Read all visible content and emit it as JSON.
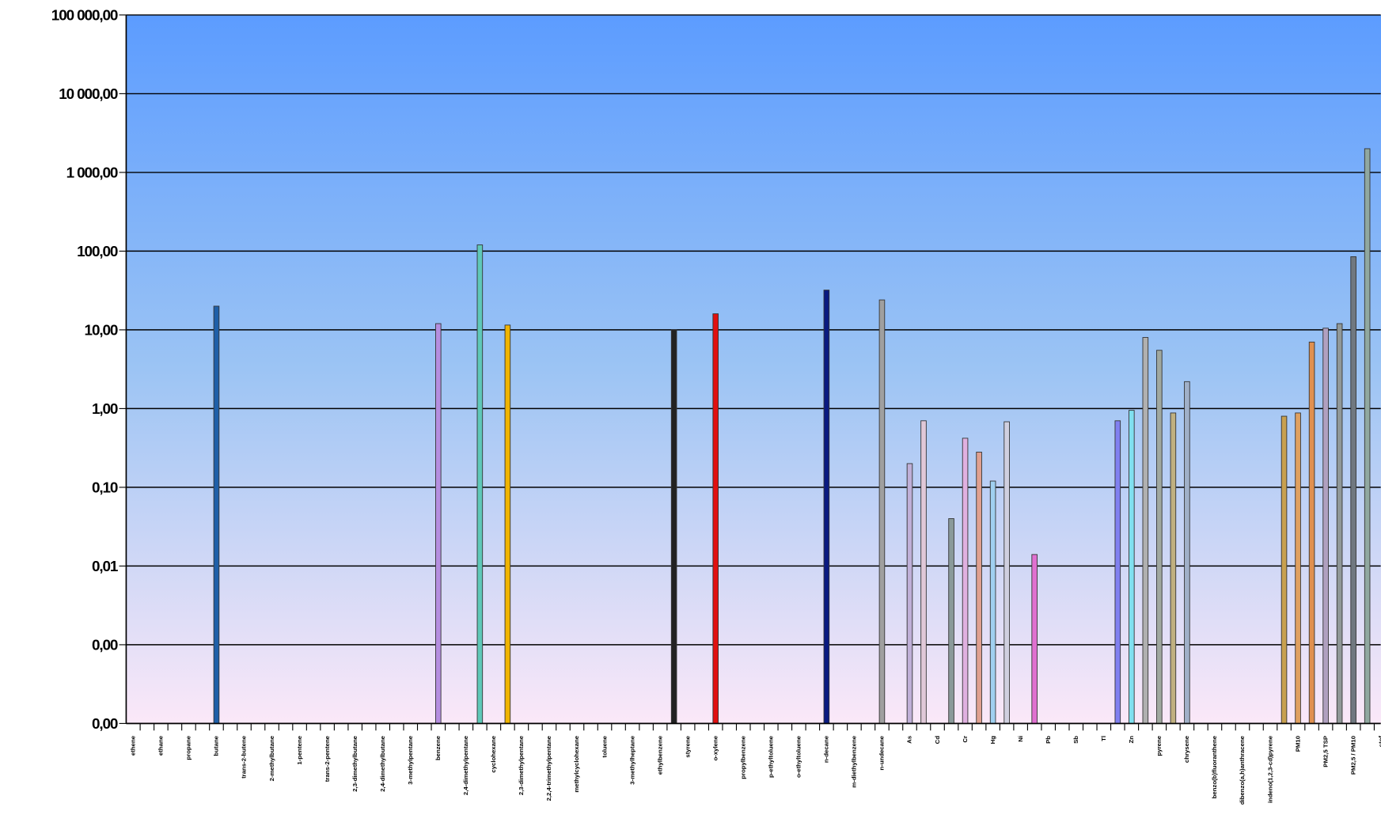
{
  "chart_data": {
    "type": "bar",
    "log_scale": true,
    "grid": true,
    "categories": [
      "ethene",
      null,
      "ethane",
      null,
      "propane",
      null,
      "butane",
      null,
      "trans-2-butene",
      null,
      "2-methylbutane",
      null,
      "1-pentene",
      null,
      "trans-2-pentene",
      null,
      "2,3-dimethylbutane",
      null,
      "2,4-dimethylbutane",
      null,
      "3-methylpentane",
      null,
      "benzene",
      null,
      "2,4-dimethylpentane",
      null,
      "cyclohexane",
      null,
      "2,3-dimethylpentane",
      null,
      "2,2,4-trimethylpentane",
      null,
      "methylcyclohexane",
      null,
      "toluene",
      null,
      "3-methylheptane",
      null,
      "ethylbenzene",
      null,
      "styrene",
      null,
      "o-xylene",
      null,
      "propylbenzene",
      null,
      "p-ethyltoluene",
      null,
      "o-ethyltoluene",
      null,
      "n-decane",
      null,
      "m-diethylbenzene",
      null,
      "n-undecane",
      null,
      "As",
      null,
      "Cd",
      null,
      "Cr",
      null,
      "Hg",
      null,
      "Ni",
      null,
      "Pb",
      null,
      "Sb",
      null,
      "Tl",
      null,
      "Zn",
      null,
      "pyrene",
      null,
      "chrysene",
      null,
      "benzo(b)fluoranthene",
      null,
      "dibenzo(a,h)anthracene",
      null,
      "indeno(1,2,3-cd)pyrene",
      null,
      "PM10",
      null,
      "PM2,5 TSP",
      null,
      "PM2,5 / PM10",
      null,
      "stof"
    ],
    "values": [
      null,
      null,
      null,
      null,
      null,
      null,
      20,
      null,
      null,
      null,
      null,
      null,
      null,
      null,
      null,
      null,
      null,
      null,
      null,
      null,
      null,
      null,
      12,
      null,
      null,
      120,
      null,
      11.5,
      null,
      null,
      null,
      null,
      null,
      null,
      null,
      null,
      null,
      null,
      null,
      10,
      null,
      null,
      16,
      null,
      null,
      null,
      null,
      null,
      null,
      null,
      32,
      null,
      null,
      null,
      24,
      null,
      0.2,
      0.7,
      null,
      0.04,
      0.42,
      0.28,
      0.12,
      0.68,
      null,
      0.014,
      null,
      null,
      null,
      null,
      null,
      0.7,
      0.95,
      8,
      5.5,
      0.88,
      2.2,
      null,
      null,
      null,
      null,
      null,
      null,
      0.8,
      0.88,
      7,
      10.5,
      12,
      85,
      2000,
      null
    ],
    "colors": [
      null,
      null,
      null,
      null,
      null,
      null,
      "#1f5fa8",
      null,
      null,
      null,
      null,
      null,
      null,
      null,
      null,
      null,
      null,
      null,
      null,
      null,
      null,
      null,
      "#b58ee0",
      null,
      null,
      "#5fc8b8",
      null,
      "#f0b400",
      null,
      null,
      null,
      null,
      null,
      null,
      null,
      null,
      null,
      null,
      null,
      "#222222",
      null,
      null,
      "#e01010",
      null,
      null,
      null,
      null,
      null,
      null,
      null,
      "#0a1a80",
      null,
      null,
      null,
      "#a0a0a0",
      null,
      "#c0b0d8",
      "#e0c8d8",
      null,
      "#8a9a9a",
      "#e0b0e0",
      "#e0a090",
      "#a0d0f0",
      "#d0d0e0",
      null,
      "#e070d0",
      null,
      null,
      null,
      null,
      null,
      "#8080f0",
      "#80e0f0",
      "#b0b0b0",
      "#a0a8a0",
      "#c0b080",
      "#a0b0c8",
      null,
      null,
      null,
      null,
      null,
      null,
      "#c8a050",
      "#e0a060",
      "#e09050",
      "#b0a0c0",
      "#909898",
      "#707880",
      "#90a8a0",
      null
    ],
    "ylim": [
      0.0001,
      100000
    ],
    "yticks": [
      {
        "value": 0.0001,
        "label": "0,00"
      },
      {
        "value": 0.001,
        "label": "0,00"
      },
      {
        "value": 0.01,
        "label": "0,01"
      },
      {
        "value": 0.1,
        "label": "0,10"
      },
      {
        "value": 1,
        "label": "1,00"
      },
      {
        "value": 10,
        "label": "10,00"
      },
      {
        "value": 100,
        "label": "100,00"
      },
      {
        "value": 1000,
        "label": "1 000,00"
      },
      {
        "value": 10000,
        "label": "10 000,00"
      },
      {
        "value": 100000,
        "label": "100 000,00"
      }
    ]
  }
}
